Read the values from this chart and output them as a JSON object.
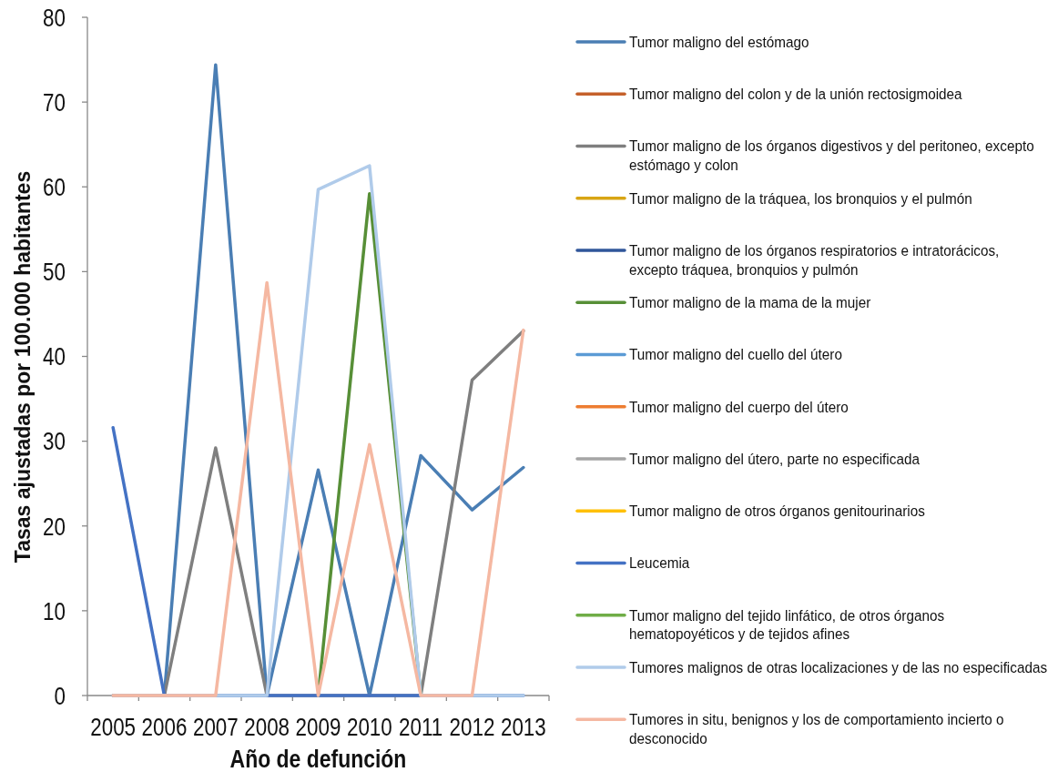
{
  "chart_data": {
    "type": "line",
    "xlabel": "Año de defunción",
    "ylabel": "Tasas ajustadas por 100.000 habitantes",
    "categories": [
      "2005",
      "2006",
      "2007",
      "2008",
      "2009",
      "2010",
      "2011",
      "2012",
      "2013"
    ],
    "ylim": [
      0,
      80
    ],
    "yticks": [
      0,
      10,
      20,
      30,
      40,
      50,
      60,
      70,
      80
    ],
    "legend": "right",
    "series": [
      {
        "name": "Tumor maligno del estómago",
        "color": "#4a7eb4",
        "values": [
          0,
          0,
          74.4,
          0,
          26.6,
          0,
          28.3,
          21.9,
          26.9
        ]
      },
      {
        "name": "Tumor maligno del colon y de la unión rectosigmoidea",
        "color": "#c5612b",
        "values": [
          null,
          null,
          null,
          null,
          null,
          null,
          null,
          null,
          null
        ]
      },
      {
        "name": "Tumor maligno de los órganos digestivos y del peritoneo, excepto estómago y colon",
        "color": "#7f7f7f",
        "values": [
          0,
          0,
          29.2,
          0,
          0,
          0,
          0,
          37.2,
          43.0
        ]
      },
      {
        "name": "Tumor maligno de la tráquea, los bronquios y el pulmón",
        "color": "#d8a514",
        "values": [
          null,
          null,
          null,
          null,
          null,
          null,
          null,
          null,
          null
        ]
      },
      {
        "name": "Tumor maligno de los órganos respiratorios e intratorácicos, excepto tráquea, bronquios y pulmón",
        "color": "#30569a",
        "values": [
          null,
          null,
          null,
          null,
          null,
          null,
          null,
          null,
          null
        ]
      },
      {
        "name": "Tumor maligno de la mama de la mujer",
        "color": "#578f37",
        "values": [
          null,
          null,
          null,
          null,
          0,
          59.2,
          0,
          null,
          null
        ]
      },
      {
        "name": "Tumor maligno del cuello del útero",
        "color": "#5b9bd5",
        "values": [
          null,
          null,
          null,
          null,
          null,
          null,
          null,
          null,
          null
        ]
      },
      {
        "name": "Tumor maligno del cuerpo del útero",
        "color": "#ed7d31",
        "values": [
          null,
          null,
          null,
          null,
          null,
          null,
          null,
          null,
          null
        ]
      },
      {
        "name": "Tumor maligno del útero, parte no especificada",
        "color": "#a5a5a5",
        "values": [
          null,
          null,
          null,
          null,
          null,
          null,
          null,
          null,
          null
        ]
      },
      {
        "name": "Tumor maligno de otros órganos genitourinarios",
        "color": "#ffc000",
        "values": [
          null,
          null,
          null,
          null,
          null,
          null,
          null,
          null,
          null
        ]
      },
      {
        "name": "Leucemia",
        "color": "#4472c4",
        "values": [
          31.6,
          0,
          0,
          0,
          0,
          0,
          0,
          0,
          0
        ]
      },
      {
        "name": "Tumor maligno del tejido linfático, de otros órganos hematopoyéticos y de tejidos afines",
        "color": "#70ad47",
        "values": [
          null,
          null,
          null,
          null,
          null,
          null,
          null,
          null,
          null
        ]
      },
      {
        "name": "Tumores malignos de otras localizaciones y de las no especificadas",
        "color": "#b0cbea",
        "values": [
          0,
          0,
          0,
          0,
          59.7,
          62.5,
          0,
          0,
          0
        ]
      },
      {
        "name": "Tumores in situ, benignos y los de comportamiento incierto o desconocido",
        "color": "#f5b8a2",
        "values": [
          0,
          0,
          0,
          48.7,
          0,
          29.6,
          0,
          0,
          43.1
        ]
      }
    ]
  }
}
